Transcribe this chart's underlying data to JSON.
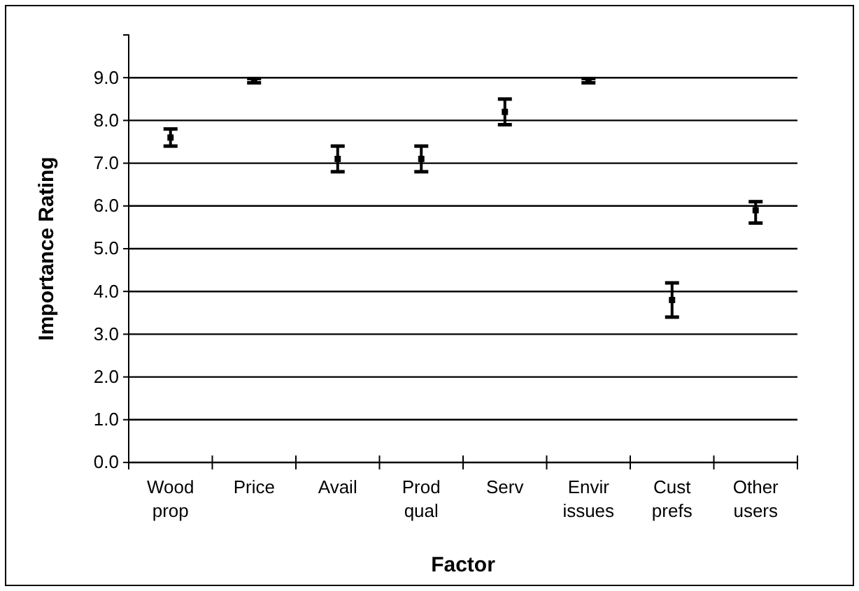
{
  "chart_data": {
    "type": "scatter",
    "xlabel": "Factor",
    "ylabel": "Importance Rating",
    "categories": [
      "Wood\nprop",
      "Price",
      "Avail",
      "Prod\nqual",
      "Serv",
      "Envir\nissues",
      "Cust\nprefs",
      "Other\nusers"
    ],
    "values": [
      7.6,
      8.93,
      7.1,
      7.1,
      8.2,
      8.93,
      3.8,
      5.9
    ],
    "errors": [
      0.2,
      0.05,
      0.3,
      0.3,
      0.3,
      0.05,
      0.4,
      [
        5.6,
        6.1
      ]
    ],
    "color": "#000000",
    "marker": "square",
    "grid": "y",
    "ylim": [
      0,
      10
    ],
    "yticks": [
      {
        "value": 0,
        "label": "0.0"
      },
      {
        "value": 1,
        "label": "1.0"
      },
      {
        "value": 2,
        "label": "2.0"
      },
      {
        "value": 3,
        "label": "3.0"
      },
      {
        "value": 4,
        "label": "4.0"
      },
      {
        "value": 5,
        "label": "5.0"
      },
      {
        "value": 6,
        "label": "6.0"
      },
      {
        "value": 7,
        "label": "7.0"
      },
      {
        "value": 8,
        "label": "8.0"
      },
      {
        "value": 9,
        "label": "9.0"
      }
    ]
  }
}
